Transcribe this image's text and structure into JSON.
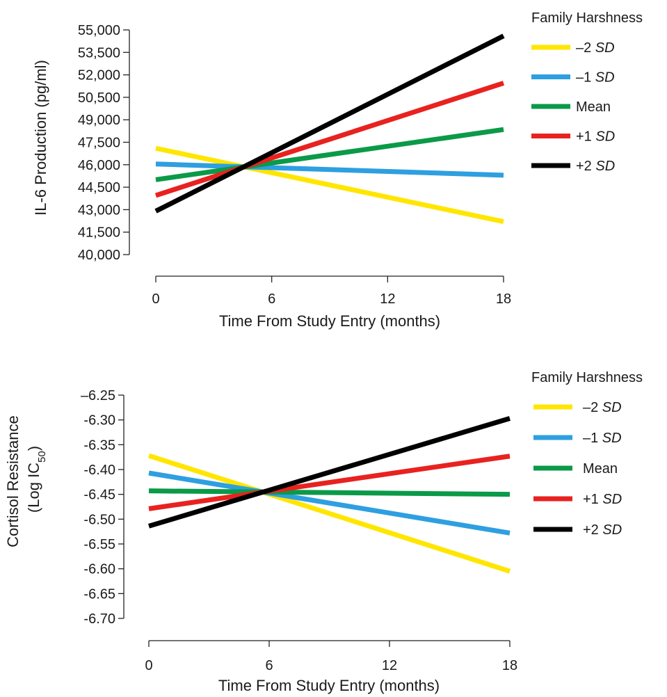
{
  "chart_data": [
    {
      "type": "line",
      "ylabel": "IL-6 Production (pg/ml)",
      "xlabel": "Time From Study Entry (months)",
      "x_ticks": [
        0,
        6,
        12,
        18
      ],
      "xlim": [
        0,
        18
      ],
      "y_ticks": [
        "55,000",
        "53,500",
        "52,000",
        "50,500",
        "49,000",
        "47,500",
        "46,000",
        "44,500",
        "43,000",
        "41,500",
        "40,000"
      ],
      "ylim": [
        40000,
        55000
      ],
      "grid": false,
      "legend": {
        "title": "Family Harshness",
        "placement": "right",
        "entries": [
          {
            "label": "–2",
            "label_italic": "SD",
            "color": "#ffe600"
          },
          {
            "label": "–1",
            "label_italic": "SD",
            "color": "#2e9fe0"
          },
          {
            "label": "Mean",
            "label_italic": "",
            "color": "#0a9a48"
          },
          {
            "label": "+1",
            "label_italic": "SD",
            "color": "#e8221f"
          },
          {
            "label": "+2",
            "label_italic": "SD",
            "color": "#000000"
          }
        ]
      },
      "series": [
        {
          "name": "–2 SD",
          "x": [
            0,
            18
          ],
          "y": [
            47100,
            42200
          ],
          "color": "#ffe600"
        },
        {
          "name": "–1 SD",
          "x": [
            0,
            18
          ],
          "y": [
            46050,
            45300
          ],
          "color": "#2e9fe0"
        },
        {
          "name": "Mean",
          "x": [
            0,
            18
          ],
          "y": [
            45000,
            48350
          ],
          "color": "#0a9a48"
        },
        {
          "name": "+1 SD",
          "x": [
            0,
            18
          ],
          "y": [
            43950,
            51450
          ],
          "color": "#e8221f"
        },
        {
          "name": "+2 SD",
          "x": [
            0,
            18
          ],
          "y": [
            42900,
            54600
          ],
          "color": "#000000"
        }
      ]
    },
    {
      "type": "line",
      "ylabel_lines": [
        "Cortisol Resistance",
        "(Log IC",
        "50",
        ")"
      ],
      "xlabel": "Time From Study Entry (months)",
      "x_ticks": [
        0,
        6,
        12,
        18
      ],
      "xlim": [
        0,
        18
      ],
      "y_ticks": [
        "–6.25",
        "-6.30",
        "-6.35",
        "-6.40",
        "-6.45",
        "-6.50",
        "-6.55",
        "-6.60",
        "-6.65",
        "-6.70"
      ],
      "ylim": [
        -6.7,
        -6.25
      ],
      "grid": false,
      "legend": {
        "title": "Family Harshness",
        "placement": "right",
        "entries": [
          {
            "label": "–2",
            "label_italic": "SD",
            "color": "#ffe600"
          },
          {
            "label": "–1",
            "label_italic": "SD",
            "color": "#2e9fe0"
          },
          {
            "label": "Mean",
            "label_italic": "",
            "color": "#0a9a48"
          },
          {
            "label": "+1",
            "label_italic": "SD",
            "color": "#e8221f"
          },
          {
            "label": "+2",
            "label_italic": "SD",
            "color": "#000000"
          }
        ]
      },
      "series": [
        {
          "name": "–2 SD",
          "x": [
            0,
            18
          ],
          "y": [
            -6.372,
            -6.605
          ],
          "color": "#ffe600"
        },
        {
          "name": "–1 SD",
          "x": [
            0,
            18
          ],
          "y": [
            -6.407,
            -6.528
          ],
          "color": "#2e9fe0"
        },
        {
          "name": "Mean",
          "x": [
            0,
            18
          ],
          "y": [
            -6.443,
            -6.45
          ],
          "color": "#0a9a48"
        },
        {
          "name": "+1 SD",
          "x": [
            0,
            18
          ],
          "y": [
            -6.479,
            -6.373
          ],
          "color": "#e8221f"
        },
        {
          "name": "+2 SD",
          "x": [
            0,
            18
          ],
          "y": [
            -6.514,
            -6.297
          ],
          "color": "#000000"
        }
      ]
    }
  ]
}
